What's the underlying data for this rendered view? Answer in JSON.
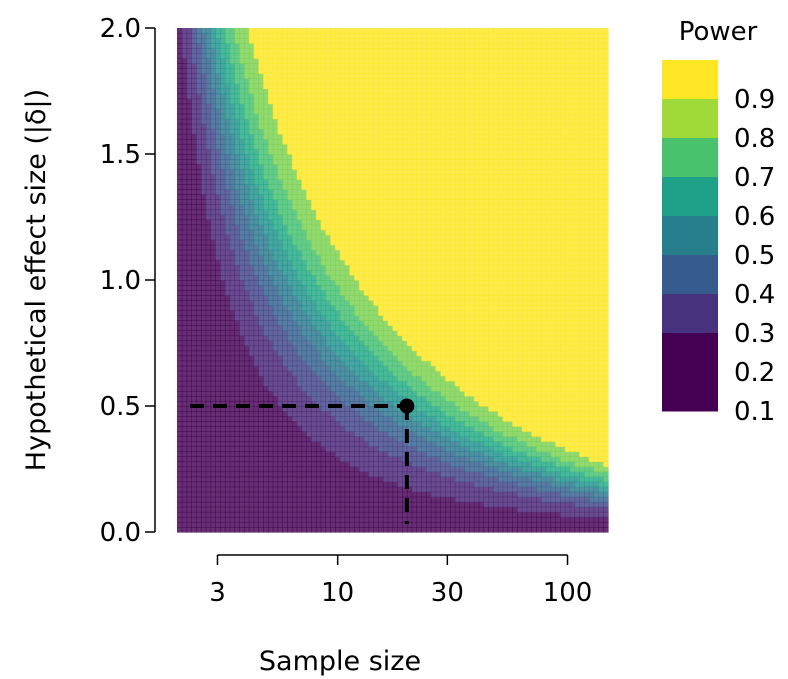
{
  "chart_data": {
    "type": "contour",
    "xlabel": "Sample size",
    "ylabel": "Hypothetical effect size (|δ|)",
    "x_scale": "log",
    "x_ticks": [
      3,
      10,
      30,
      100
    ],
    "x_tick_labels": [
      "3",
      "10",
      "30",
      "100"
    ],
    "xlim": [
      2,
      150
    ],
    "y_ticks": [
      0.0,
      0.5,
      1.0,
      1.5,
      2.0
    ],
    "y_tick_labels": [
      "0.0",
      "0.5",
      "1.0",
      "1.5",
      "2.0"
    ],
    "ylim": [
      0.0,
      2.0
    ],
    "legend": {
      "title": "Power",
      "levels": [
        "0.9",
        "0.8",
        "0.7",
        "0.6",
        "0.5",
        "0.4",
        "0.3",
        "0.2",
        "0.1"
      ],
      "colors": [
        "#FDE725",
        "#A0DA39",
        "#4AC16D",
        "#1FA187",
        "#277F8E",
        "#365C8D",
        "#46327E",
        "#440154",
        "#440154"
      ],
      "swatch_colors": [
        "#FDE725",
        "#A0DA39",
        "#4AC16D",
        "#1FA187",
        "#277F8E",
        "#365C8D",
        "#46327E",
        "#440154"
      ]
    },
    "power_bands": [
      {
        "from": 0.0,
        "to": 0.1,
        "color": "#440154"
      },
      {
        "from": 0.1,
        "to": 0.2,
        "color": "#482475"
      },
      {
        "from": 0.2,
        "to": 0.3,
        "color": "#414487"
      },
      {
        "from": 0.3,
        "to": 0.4,
        "color": "#355F8D"
      },
      {
        "from": 0.4,
        "to": 0.5,
        "color": "#2A788E"
      },
      {
        "from": 0.5,
        "to": 0.6,
        "color": "#21918C"
      },
      {
        "from": 0.6,
        "to": 0.7,
        "color": "#22A884"
      },
      {
        "from": 0.7,
        "to": 0.8,
        "color": "#44BF70"
      },
      {
        "from": 0.8,
        "to": 0.9,
        "color": "#7AD151"
      },
      {
        "from": 0.9,
        "to": 1.0,
        "color": "#FDE725"
      }
    ],
    "highlight_point": {
      "x": 20,
      "y": 0.5
    }
  }
}
